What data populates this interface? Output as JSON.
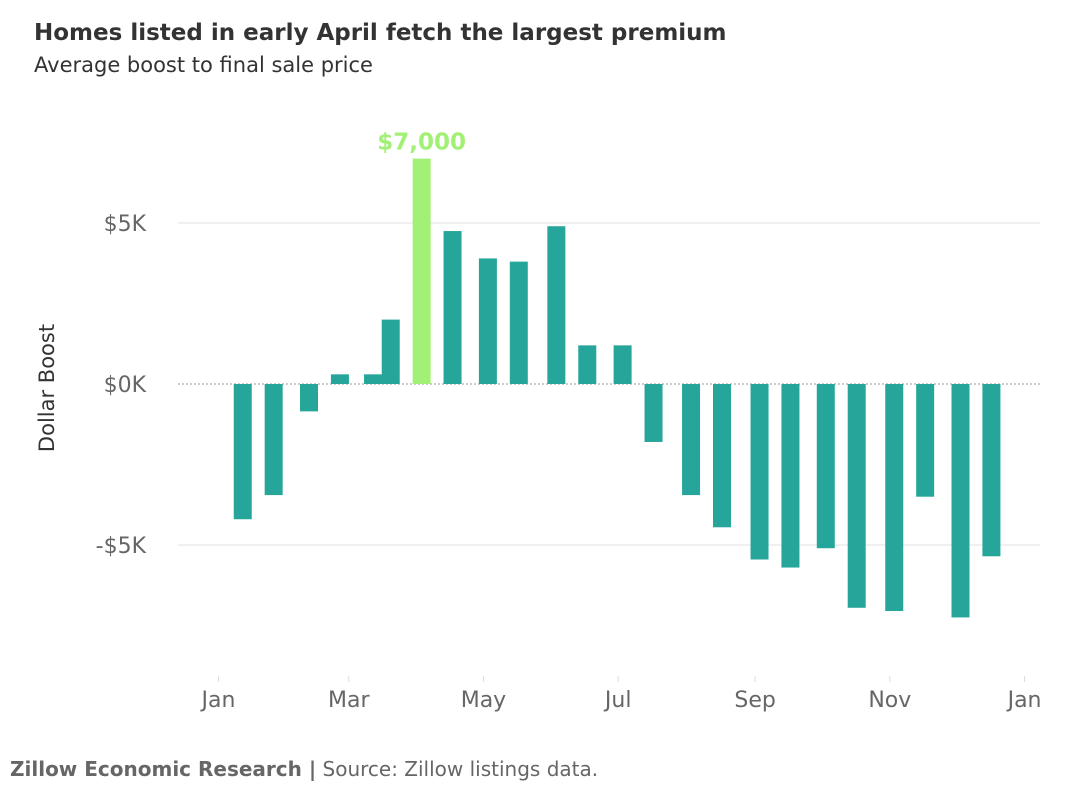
{
  "chart_data": {
    "type": "bar",
    "title": "Homes listed in early April fetch the largest premium",
    "subtitle": "Average boost to final sale price",
    "ylabel": "Dollar Boost",
    "xlabel": "",
    "ylim": [
      -9000,
      8500
    ],
    "y_ticks": [
      {
        "value": 5000,
        "label": "$5K"
      },
      {
        "value": 0,
        "label": "$0K"
      },
      {
        "value": -5000,
        "label": "-$5K"
      }
    ],
    "x_ticks": [
      {
        "date": "2019-01-01",
        "label": "Jan"
      },
      {
        "date": "2019-03-01",
        "label": "Mar"
      },
      {
        "date": "2019-05-01",
        "label": "May"
      },
      {
        "date": "2019-07-01",
        "label": "Jul"
      },
      {
        "date": "2019-09-01",
        "label": "Sep"
      },
      {
        "date": "2019-11-01",
        "label": "Nov"
      },
      {
        "date": "2020-01-01",
        "label": "Jan"
      }
    ],
    "x_range": [
      "2018-12-01",
      "2020-01-08"
    ],
    "grid": "horizontal",
    "highlight": {
      "date": "2019-04-03",
      "label": "$7,000"
    },
    "bars": [
      {
        "date": "2019-01-12",
        "value": -4200
      },
      {
        "date": "2019-01-26",
        "value": -3450
      },
      {
        "date": "2019-02-11",
        "value": -850
      },
      {
        "date": "2019-02-25",
        "value": 300
      },
      {
        "date": "2019-03-12",
        "value": 300
      },
      {
        "date": "2019-03-20",
        "value": 2000
      },
      {
        "date": "2019-04-03",
        "value": 7000
      },
      {
        "date": "2019-04-17",
        "value": 4750
      },
      {
        "date": "2019-05-03",
        "value": 3900
      },
      {
        "date": "2019-05-17",
        "value": 3800
      },
      {
        "date": "2019-06-03",
        "value": 4900
      },
      {
        "date": "2019-06-17",
        "value": 1200
      },
      {
        "date": "2019-07-03",
        "value": 1200
      },
      {
        "date": "2019-07-17",
        "value": -1800
      },
      {
        "date": "2019-08-03",
        "value": -3450
      },
      {
        "date": "2019-08-17",
        "value": -4450
      },
      {
        "date": "2019-09-03",
        "value": -5450
      },
      {
        "date": "2019-09-17",
        "value": -5700
      },
      {
        "date": "2019-10-03",
        "value": -5100
      },
      {
        "date": "2019-10-17",
        "value": -6950
      },
      {
        "date": "2019-11-03",
        "value": -7050
      },
      {
        "date": "2019-11-17",
        "value": -3500
      },
      {
        "date": "2019-12-03",
        "value": -7250
      },
      {
        "date": "2019-12-17",
        "value": -5350
      }
    ]
  },
  "colors": {
    "bar": "#26a69a",
    "highlight": "#a2f075",
    "grid": "#ececec",
    "zero_line": "#bbbbbb",
    "tick_text": "#666666",
    "text": "#333333"
  },
  "footer": {
    "org": "Zillow Economic Research |",
    "source": "Source: Zillow listings data."
  }
}
